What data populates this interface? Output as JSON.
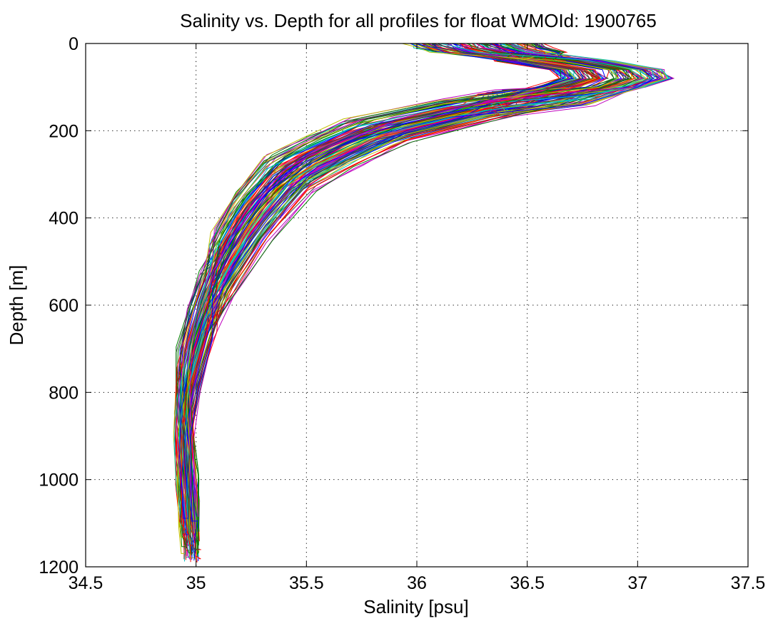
{
  "chart_data": {
    "type": "line",
    "title": "Salinity vs. Depth for all profiles for float WMOId: 1900765",
    "xlabel": "Salinity [psu]",
    "ylabel": "Depth [m]",
    "xlim": [
      34.5,
      37.5
    ],
    "ylim": [
      0,
      1200
    ],
    "y_reversed": true,
    "grid": "dotted",
    "legend": "none",
    "xticks": [
      34.5,
      35,
      35.5,
      36,
      36.5,
      37,
      37.5
    ],
    "xtick_labels": [
      "34.5",
      "35",
      "35.5",
      "36",
      "36.5",
      "37",
      "37.5"
    ],
    "yticks": [
      0,
      200,
      400,
      600,
      800,
      1000,
      1200
    ],
    "ytick_labels": [
      "0",
      "200",
      "400",
      "600",
      "800",
      "1000",
      "1200"
    ],
    "profile_count": 120,
    "series_colors": [
      "#0000ff",
      "#008000",
      "#ff0000",
      "#00bfbf",
      "#bf00bf",
      "#bfbf00",
      "#404040"
    ],
    "profile_depths_m": [
      0,
      10,
      20,
      40,
      60,
      80,
      100,
      125,
      150,
      200,
      250,
      300,
      400,
      500,
      600,
      700,
      800,
      900,
      1000,
      1100,
      1150
    ],
    "mean_profile_psu": [
      36.26,
      36.3,
      36.38,
      36.62,
      36.86,
      36.9,
      36.78,
      36.55,
      36.25,
      35.82,
      35.6,
      35.42,
      35.25,
      35.13,
      35.05,
      34.99,
      34.95,
      34.94,
      34.95,
      34.97,
      34.98
    ]
  }
}
